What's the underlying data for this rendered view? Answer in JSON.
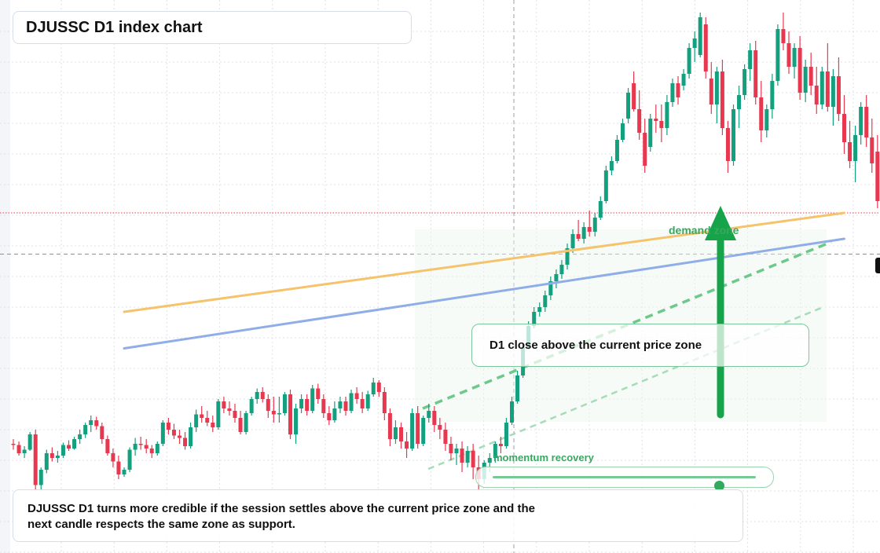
{
  "title": "DJUSSC D1 index chart",
  "callout": {
    "text": "D1 close above the current price zone"
  },
  "slider": {
    "label": "momentum recovery",
    "value": 0.86
  },
  "zone_label": "demand zone",
  "note": {
    "line1": "DJUSSC D1 turns more credible if the session settles above the current price zone and the",
    "line2": "next candle respects the same zone as support."
  },
  "colors": {
    "up": "#13a07e",
    "down": "#e8384f",
    "ma_fast": "#f5c36b",
    "ma_slow": "#8faee8",
    "accent_green": "#16a34a",
    "grid": "#dde2ea"
  },
  "chart_data": {
    "type": "candlestick",
    "timeframe": "D1",
    "symbol": "DJUSSC",
    "ylim": [
      10,
      470
    ],
    "xlim": [
      0,
      150
    ],
    "grid": true,
    "candles": [
      [
        100,
        104,
        95,
        99
      ],
      [
        99,
        102,
        90,
        92
      ],
      [
        92,
        98,
        88,
        95
      ],
      [
        95,
        110,
        94,
        108
      ],
      [
        108,
        112,
        60,
        65
      ],
      [
        65,
        80,
        60,
        78
      ],
      [
        78,
        95,
        75,
        92
      ],
      [
        92,
        97,
        85,
        88
      ],
      [
        88,
        94,
        84,
        90
      ],
      [
        90,
        101,
        88,
        99
      ],
      [
        99,
        103,
        94,
        96
      ],
      [
        96,
        106,
        95,
        104
      ],
      [
        104,
        112,
        100,
        108
      ],
      [
        108,
        118,
        105,
        116
      ],
      [
        116,
        124,
        110,
        120
      ],
      [
        120,
        123,
        112,
        115
      ],
      [
        115,
        118,
        100,
        104
      ],
      [
        104,
        107,
        90,
        92
      ],
      [
        92,
        96,
        80,
        85
      ],
      [
        85,
        90,
        70,
        74
      ],
      [
        74,
        80,
        72,
        78
      ],
      [
        78,
        97,
        76,
        95
      ],
      [
        95,
        105,
        90,
        100
      ],
      [
        100,
        106,
        95,
        99
      ],
      [
        99,
        104,
        92,
        96
      ],
      [
        96,
        99,
        88,
        92
      ],
      [
        92,
        102,
        90,
        100
      ],
      [
        100,
        120,
        98,
        118
      ],
      [
        118,
        122,
        108,
        112
      ],
      [
        112,
        117,
        104,
        107
      ],
      [
        107,
        112,
        100,
        105
      ],
      [
        105,
        110,
        95,
        98
      ],
      [
        98,
        118,
        96,
        114
      ],
      [
        114,
        129,
        110,
        125
      ],
      [
        125,
        132,
        118,
        122
      ],
      [
        122,
        128,
        115,
        118
      ],
      [
        118,
        124,
        110,
        114
      ],
      [
        114,
        138,
        112,
        136
      ],
      [
        136,
        140,
        126,
        130
      ],
      [
        130,
        136,
        124,
        128
      ],
      [
        128,
        134,
        118,
        122
      ],
      [
        122,
        128,
        108,
        110
      ],
      [
        110,
        128,
        108,
        126
      ],
      [
        126,
        140,
        124,
        138
      ],
      [
        138,
        147,
        134,
        144
      ],
      [
        144,
        148,
        135,
        138
      ],
      [
        138,
        142,
        122,
        128
      ],
      [
        128,
        140,
        118,
        125
      ],
      [
        125,
        140,
        118,
        126
      ],
      [
        126,
        144,
        124,
        142
      ],
      [
        142,
        146,
        104,
        108
      ],
      [
        108,
        134,
        100,
        130
      ],
      [
        130,
        142,
        126,
        138
      ],
      [
        138,
        142,
        124,
        128
      ],
      [
        128,
        150,
        126,
        147
      ],
      [
        147,
        151,
        134,
        138
      ],
      [
        138,
        142,
        122,
        126
      ],
      [
        126,
        132,
        116,
        120
      ],
      [
        120,
        136,
        118,
        130
      ],
      [
        130,
        140,
        126,
        136
      ],
      [
        136,
        140,
        124,
        128
      ],
      [
        128,
        146,
        126,
        143
      ],
      [
        143,
        148,
        134,
        138
      ],
      [
        138,
        144,
        126,
        130
      ],
      [
        130,
        145,
        128,
        142
      ],
      [
        142,
        156,
        140,
        152
      ],
      [
        152,
        154,
        140,
        144
      ],
      [
        144,
        148,
        120,
        126
      ],
      [
        126,
        130,
        98,
        104
      ],
      [
        104,
        120,
        100,
        114
      ],
      [
        114,
        118,
        96,
        102
      ],
      [
        102,
        110,
        88,
        96
      ],
      [
        96,
        130,
        94,
        126
      ],
      [
        126,
        132,
        96,
        100
      ],
      [
        100,
        124,
        98,
        122
      ],
      [
        122,
        134,
        118,
        128
      ],
      [
        128,
        132,
        110,
        116
      ],
      [
        116,
        122,
        104,
        112
      ],
      [
        112,
        118,
        94,
        100
      ],
      [
        100,
        106,
        86,
        92
      ],
      [
        92,
        100,
        82,
        96
      ],
      [
        96,
        102,
        76,
        84
      ],
      [
        84,
        98,
        80,
        94
      ],
      [
        94,
        100,
        70,
        80
      ],
      [
        80,
        90,
        60,
        70
      ],
      [
        70,
        86,
        66,
        84
      ],
      [
        84,
        92,
        76,
        88
      ],
      [
        88,
        102,
        84,
        100
      ],
      [
        100,
        106,
        92,
        98
      ],
      [
        98,
        122,
        96,
        118
      ],
      [
        118,
        140,
        116,
        136
      ],
      [
        136,
        162,
        134,
        158
      ],
      [
        158,
        186,
        156,
        182
      ],
      [
        182,
        204,
        180,
        200
      ],
      [
        200,
        216,
        198,
        212
      ],
      [
        212,
        220,
        208,
        216
      ],
      [
        216,
        230,
        212,
        226
      ],
      [
        226,
        242,
        222,
        238
      ],
      [
        238,
        248,
        232,
        244
      ],
      [
        244,
        256,
        240,
        252
      ],
      [
        252,
        270,
        248,
        266
      ],
      [
        266,
        282,
        262,
        278
      ],
      [
        278,
        290,
        272,
        274
      ],
      [
        274,
        288,
        270,
        284
      ],
      [
        284,
        298,
        276,
        280
      ],
      [
        280,
        296,
        276,
        292
      ],
      [
        292,
        310,
        290,
        306
      ],
      [
        306,
        336,
        304,
        332
      ],
      [
        332,
        344,
        328,
        340
      ],
      [
        340,
        362,
        338,
        358
      ],
      [
        358,
        376,
        356,
        372
      ],
      [
        376,
        402,
        372,
        398
      ],
      [
        406,
        416,
        382,
        384
      ],
      [
        384,
        400,
        358,
        364
      ],
      [
        364,
        376,
        330,
        336
      ],
      [
        352,
        380,
        348,
        376
      ],
      [
        376,
        388,
        364,
        374
      ],
      [
        374,
        388,
        356,
        368
      ],
      [
        368,
        396,
        362,
        390
      ],
      [
        390,
        410,
        386,
        406
      ],
      [
        406,
        412,
        388,
        394
      ],
      [
        404,
        418,
        400,
        414
      ],
      [
        414,
        440,
        410,
        436
      ],
      [
        436,
        450,
        424,
        444
      ],
      [
        430,
        466,
        428,
        462
      ],
      [
        456,
        462,
        410,
        416
      ],
      [
        410,
        424,
        380,
        388
      ],
      [
        388,
        420,
        372,
        416
      ],
      [
        416,
        426,
        362,
        368
      ],
      [
        368,
        374,
        330,
        340
      ],
      [
        340,
        388,
        336,
        384
      ],
      [
        384,
        404,
        368,
        396
      ],
      [
        396,
        422,
        392,
        418
      ],
      [
        418,
        440,
        408,
        434
      ],
      [
        434,
        442,
        388,
        394
      ],
      [
        394,
        408,
        356,
        366
      ],
      [
        366,
        388,
        360,
        384
      ],
      [
        384,
        414,
        376,
        408
      ],
      [
        408,
        456,
        404,
        452
      ],
      [
        452,
        466,
        434,
        440
      ],
      [
        440,
        450,
        414,
        420
      ],
      [
        420,
        440,
        410,
        436
      ],
      [
        436,
        446,
        392,
        398
      ],
      [
        398,
        426,
        390,
        420
      ],
      [
        420,
        432,
        396,
        404
      ],
      [
        404,
        420,
        380,
        388
      ],
      [
        388,
        420,
        384,
        416
      ],
      [
        416,
        440,
        382,
        386
      ],
      [
        386,
        418,
        370,
        412
      ],
      [
        412,
        428,
        374,
        380
      ],
      [
        380,
        396,
        346,
        356
      ],
      [
        356,
        374,
        334,
        340
      ],
      [
        340,
        370,
        322,
        362
      ],
      [
        362,
        390,
        354,
        386
      ],
      [
        386,
        396,
        352,
        360
      ],
      [
        360,
        376,
        330,
        338
      ],
      [
        348,
        362,
        300,
        306
      ],
      [
        306,
        326,
        282,
        292
      ],
      [
        292,
        344,
        288,
        338
      ],
      [
        338,
        346,
        300,
        306
      ],
      [
        306,
        342,
        300,
        336
      ],
      [
        336,
        346,
        314,
        320
      ],
      [
        320,
        328,
        270,
        278
      ],
      [
        278,
        290,
        240,
        250
      ],
      [
        250,
        262,
        230,
        240
      ],
      [
        240,
        278,
        232,
        272
      ],
      [
        272,
        292,
        262,
        286
      ]
    ],
    "moving_averages": [
      {
        "x": [
          20,
          150
        ],
        "y": [
          212,
          296
        ]
      },
      {
        "x": [
          20,
          150
        ],
        "y": [
          181,
          274
        ]
      }
    ],
    "reference_levels": [
      296,
      261
    ]
  }
}
